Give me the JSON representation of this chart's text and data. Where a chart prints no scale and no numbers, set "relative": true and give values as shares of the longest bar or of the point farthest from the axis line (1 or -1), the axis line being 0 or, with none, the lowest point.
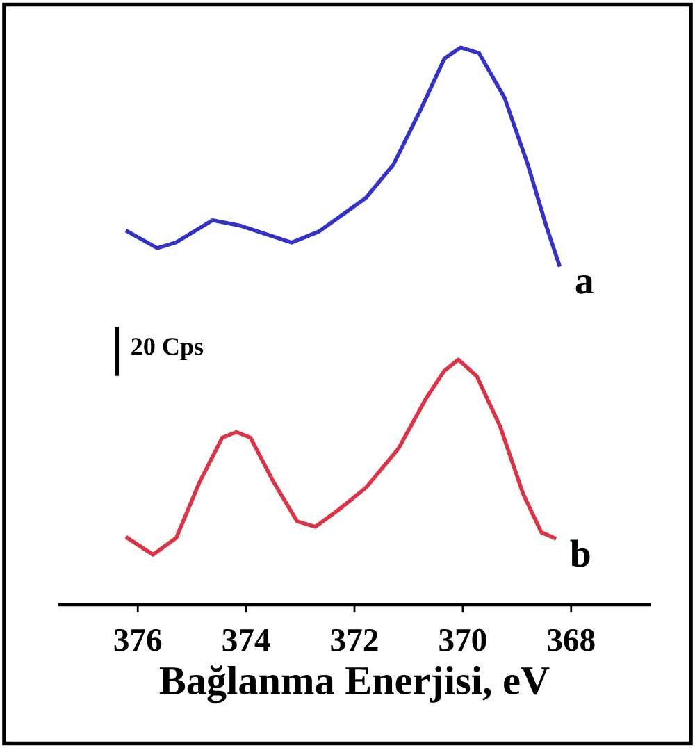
{
  "chart_data": {
    "type": "line",
    "relative": true,
    "xlabel": "Bağlanma Enerjisi, eV",
    "xlim": [
      377.44,
      366.56
    ],
    "xticks": [
      376,
      374,
      372,
      370,
      368
    ],
    "grid": false,
    "legend": false,
    "marker": "none",
    "line_style": "solid",
    "annotations": [
      "20 Cps"
    ],
    "series": [
      {
        "name": "a",
        "color": "#3333cc",
        "x": [
          376.19,
          375.64,
          375.3,
          374.62,
          374.1,
          373.16,
          372.65,
          371.79,
          371.28,
          370.77,
          370.34,
          370.04,
          369.7,
          369.23,
          368.8,
          368.46,
          368.22
        ],
        "values": [
          0.67,
          0.64,
          0.65,
          0.69,
          0.68,
          0.65,
          0.67,
          0.73,
          0.79,
          0.89,
          0.98,
          1.0,
          0.99,
          0.91,
          0.79,
          0.68,
          0.61
        ]
      },
      {
        "name": "b",
        "color": "#dd3344",
        "x": [
          376.19,
          375.72,
          375.29,
          374.86,
          374.44,
          374.18,
          373.92,
          373.49,
          373.06,
          372.72,
          372.3,
          371.79,
          371.19,
          370.68,
          370.34,
          370.08,
          369.74,
          369.31,
          368.89,
          368.55,
          368.31
        ],
        "values": [
          0.12,
          0.09,
          0.12,
          0.22,
          0.3,
          0.31,
          0.3,
          0.22,
          0.15,
          0.14,
          0.17,
          0.21,
          0.28,
          0.37,
          0.42,
          0.44,
          0.41,
          0.32,
          0.2,
          0.13,
          0.12
        ]
      }
    ]
  }
}
